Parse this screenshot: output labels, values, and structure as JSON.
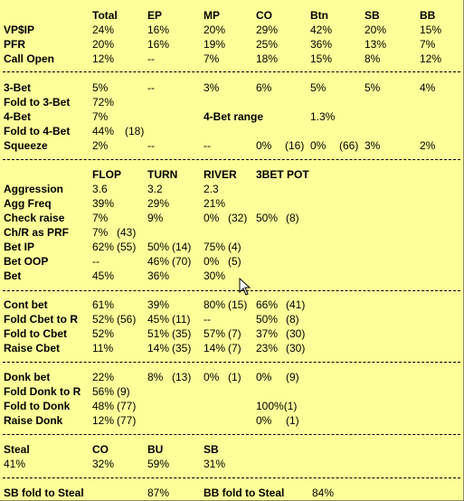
{
  "preflop": {
    "headers": [
      "Total",
      "EP",
      "MP",
      "CO",
      "Btn",
      "SB",
      "BB"
    ],
    "rows": [
      {
        "label": "VP$IP",
        "values": [
          "24%",
          "16%",
          "20%",
          "29%",
          "42%",
          "20%",
          "15%"
        ]
      },
      {
        "label": "PFR",
        "values": [
          "20%",
          "16%",
          "19%",
          "25%",
          "36%",
          "13%",
          "7%"
        ]
      },
      {
        "label": "Call Open",
        "values": [
          "12%",
          "--",
          "7%",
          "18%",
          "15%",
          "8%",
          "12%"
        ]
      }
    ]
  },
  "threebet": {
    "three_bet": {
      "label": "3-Bet",
      "values": [
        "5%",
        "--",
        "3%",
        "6%",
        "5%",
        "5%",
        "4%"
      ]
    },
    "fold_to_3bet": {
      "label": "Fold to 3-Bet",
      "value": "72%"
    },
    "four_bet": {
      "label": "4-Bet",
      "value": "7%",
      "range_label": "4-Bet range",
      "range_value": "1.3%"
    },
    "fold_to_4bet": {
      "label": "Fold to 4-Bet",
      "value": "44%",
      "count": "(18)"
    },
    "squeeze": {
      "label": "Squeeze",
      "total": "2%",
      "ep": "--",
      "mp": "--",
      "co": "0%",
      "co_count": "(16)",
      "btn": "0%",
      "btn_count": "(66)",
      "sb": "3%",
      "bb": "2%"
    }
  },
  "postflop": {
    "headers": [
      "FLOP",
      "TURN",
      "RIVER",
      "3BET POT"
    ],
    "rows": [
      {
        "label": "Aggression",
        "flop": "3.6",
        "flop_n": "",
        "turn": "3.2",
        "turn_n": "",
        "river": "2.3",
        "river_n": "",
        "pot": "",
        "pot_n": ""
      },
      {
        "label": "Agg Freq",
        "flop": "39%",
        "flop_n": "",
        "turn": "29%",
        "turn_n": "",
        "river": "21%",
        "river_n": "",
        "pot": "",
        "pot_n": ""
      },
      {
        "label": "Check raise",
        "flop": "7%",
        "flop_n": "",
        "turn": "9%",
        "turn_n": "",
        "river": "0%",
        "river_n": "(32)",
        "pot": "50%",
        "pot_n": "(8)"
      },
      {
        "label": "Ch/R as PRF",
        "flop": "7%",
        "flop_n": "(43)",
        "turn": "",
        "turn_n": "",
        "river": "",
        "river_n": "",
        "pot": "",
        "pot_n": ""
      },
      {
        "label": "Bet IP",
        "flop": "62%",
        "flop_n": "(55)",
        "turn": "50%",
        "turn_n": "(14)",
        "river": "75%",
        "river_n": "(4)",
        "pot": "",
        "pot_n": ""
      },
      {
        "label": "Bet OOP",
        "flop": "--",
        "flop_n": "",
        "turn": "46%",
        "turn_n": "(70)",
        "river": "0%",
        "river_n": "(5)",
        "pot": "",
        "pot_n": ""
      },
      {
        "label": "Bet",
        "flop": "45%",
        "flop_n": "",
        "turn": "36%",
        "turn_n": "",
        "river": "30%",
        "river_n": "",
        "pot": "",
        "pot_n": ""
      }
    ]
  },
  "cbet": {
    "rows": [
      {
        "label": "Cont bet",
        "flop": "61%",
        "flop_n": "",
        "turn": "39%",
        "turn_n": "",
        "river": "80%",
        "river_n": "(15)",
        "pot": "66%",
        "pot_n": "(41)"
      },
      {
        "label": "Fold Cbet to R",
        "flop": "52%",
        "flop_n": "(56)",
        "turn": "45%",
        "turn_n": "(11)",
        "river": "--",
        "river_n": "",
        "pot": "50%",
        "pot_n": "(8)"
      },
      {
        "label": "Fold to Cbet",
        "flop": "52%",
        "flop_n": "",
        "turn": "51%",
        "turn_n": "(35)",
        "river": "57%",
        "river_n": "(7)",
        "pot": "37%",
        "pot_n": "(30)"
      },
      {
        "label": "Raise Cbet",
        "flop": "11%",
        "flop_n": "",
        "turn": "14%",
        "turn_n": "(35)",
        "river": "14%",
        "river_n": "(7)",
        "pot": "23%",
        "pot_n": "(30)"
      }
    ]
  },
  "donk": {
    "rows": [
      {
        "label": "Donk bet",
        "flop": "22%",
        "flop_n": "",
        "turn": "8%",
        "turn_n": "(13)",
        "river": "0%",
        "river_n": "(1)",
        "pot": "0%",
        "pot_n": "(9)"
      },
      {
        "label": "Fold Donk to R",
        "flop": "56%",
        "flop_n": "(9)",
        "turn": "",
        "turn_n": "",
        "river": "",
        "river_n": "",
        "pot": "",
        "pot_n": ""
      },
      {
        "label": "Fold to Donk",
        "flop": "48%",
        "flop_n": "(77)",
        "turn": "",
        "turn_n": "",
        "river": "",
        "river_n": "",
        "pot": "100%(1)",
        "pot_n": ""
      },
      {
        "label": "Raise Donk",
        "flop": "12%",
        "flop_n": "(77)",
        "turn": "",
        "turn_n": "",
        "river": "",
        "river_n": "",
        "pot": "0%",
        "pot_n": "(1)"
      }
    ]
  },
  "steal": {
    "label": "Steal",
    "value": "41%",
    "co_label": "CO",
    "co_value": "32%",
    "bu_label": "BU",
    "bu_value": "59%",
    "sb_label": "SB",
    "sb_value": "31%"
  },
  "steal_defense": {
    "sb_label": "SB fold to Steal",
    "sb_value": "87%",
    "bb_label": "BB fold to Steal",
    "bb_value": "84%"
  },
  "cursor": {
    "icon": "mouse-pointer-icon"
  }
}
